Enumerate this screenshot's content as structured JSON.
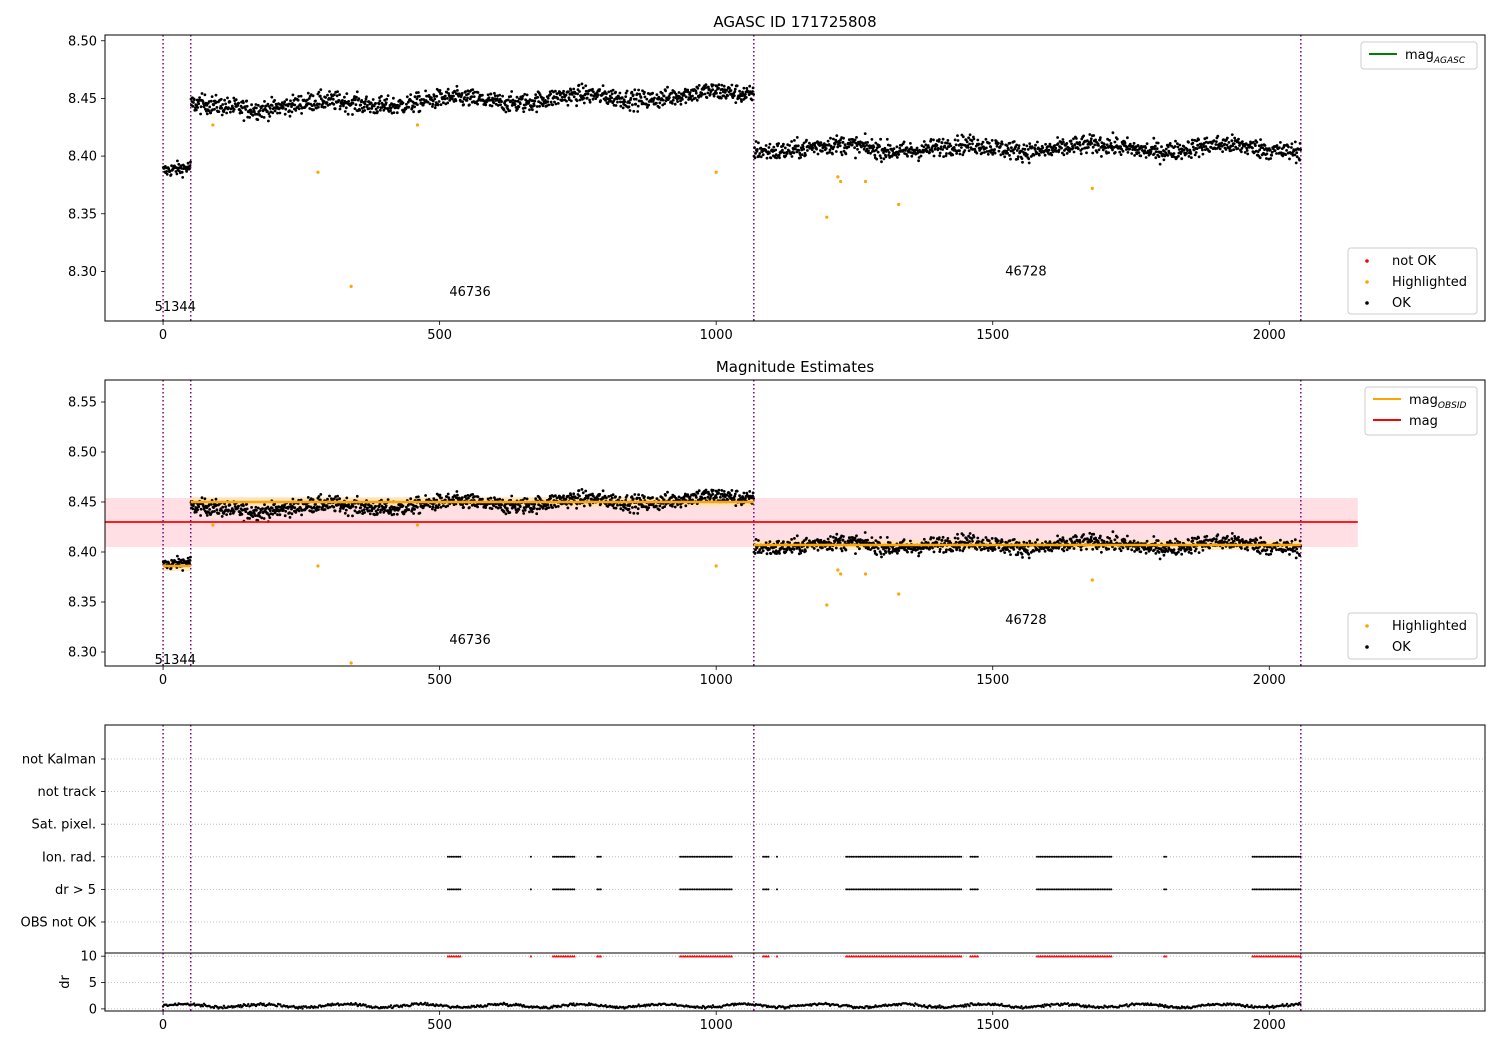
{
  "figure": {
    "title": "AGASC ID 171725808"
  },
  "chart_data": [
    {
      "type": "scatter",
      "title": "AGASC ID 171725808",
      "xlabel": "",
      "ylabel": "",
      "xlim": [
        -105,
        2390
      ],
      "ylim": [
        8.257,
        8.505
      ],
      "xticks": [
        0,
        500,
        1000,
        1500,
        2000
      ],
      "yticks": [
        8.3,
        8.35,
        8.4,
        8.45,
        8.5
      ],
      "ytick_labels": [
        "8.30",
        "8.35",
        "8.40",
        "8.45",
        "8.50"
      ],
      "grid": false,
      "legends": [
        {
          "placement": "top-right",
          "entries": [
            {
              "label": "mag",
              "sub": "AGASC",
              "color": "#008000",
              "kind": "line"
            }
          ]
        },
        {
          "placement": "lower-right",
          "entries": [
            {
              "label": "not OK",
              "color": "#ff0000",
              "kind": "marker"
            },
            {
              "label": "Highlighted",
              "color": "#ffa500",
              "kind": "marker"
            },
            {
              "label": "OK",
              "color": "#000000",
              "kind": "marker"
            }
          ]
        }
      ],
      "observations": [
        {
          "obsid": "51344",
          "start": 0,
          "end": 50,
          "mean": 8.387,
          "spread": 0.006
        },
        {
          "obsid": "46736",
          "start": 50,
          "end": 1068,
          "mean": 8.448,
          "trend": 0.012,
          "spread": 0.008
        },
        {
          "obsid": "46728",
          "start": 1068,
          "end": 2057,
          "mean": 8.407,
          "spread": 0.008
        }
      ],
      "obs_labels": [
        {
          "text": "51344",
          "x": 22,
          "y": 8.27
        },
        {
          "text": "46736",
          "x": 555,
          "y": 8.283
        },
        {
          "text": "46728",
          "x": 1560,
          "y": 8.301
        }
      ],
      "boundaries": [
        0,
        50,
        1068,
        2057
      ],
      "highlighted": [
        [
          90,
          8.427
        ],
        [
          280,
          8.386
        ],
        [
          340,
          8.287
        ],
        [
          460,
          8.427
        ],
        [
          1000,
          8.386
        ],
        [
          1200,
          8.347
        ],
        [
          1220,
          8.382
        ],
        [
          1225,
          8.378
        ],
        [
          1270,
          8.378
        ],
        [
          1330,
          8.358
        ],
        [
          1680,
          8.372
        ]
      ]
    },
    {
      "type": "scatter",
      "title": "Magnitude Estimates",
      "xlabel": "",
      "ylabel": "",
      "xlim": [
        -105,
        2390
      ],
      "ylim": [
        8.286,
        8.572
      ],
      "xticks": [
        0,
        500,
        1000,
        1500,
        2000
      ],
      "yticks": [
        8.3,
        8.35,
        8.4,
        8.45,
        8.5,
        8.55
      ],
      "ytick_labels": [
        "8.30",
        "8.35",
        "8.40",
        "8.45",
        "8.50",
        "8.55"
      ],
      "grid": false,
      "mag": {
        "value": 8.43,
        "band": [
          8.405,
          8.454
        ],
        "x_range": [
          -105,
          2160
        ],
        "color": "#ff0000",
        "band_color": "#ffdfe3"
      },
      "mag_obsid": [
        {
          "start": 0,
          "end": 50,
          "value": 8.386
        },
        {
          "start": 50,
          "end": 1068,
          "value": 8.45
        },
        {
          "start": 1068,
          "end": 2057,
          "value": 8.407
        }
      ],
      "legends": [
        {
          "placement": "top-right",
          "entries": [
            {
              "label": "mag",
              "sub": "OBSID",
              "color": "#ffa500",
              "kind": "line"
            },
            {
              "label": "mag",
              "sub": "",
              "color": "#ff0000",
              "kind": "line"
            }
          ]
        },
        {
          "placement": "lower-right",
          "entries": [
            {
              "label": "Highlighted",
              "color": "#ffa500",
              "kind": "marker"
            },
            {
              "label": "OK",
              "color": "#000000",
              "kind": "marker"
            }
          ]
        }
      ],
      "obs_labels": [
        {
          "text": "51344",
          "x": 22,
          "y": 8.293
        },
        {
          "text": "46736",
          "x": 555,
          "y": 8.313
        },
        {
          "text": "46728",
          "x": 1560,
          "y": 8.333
        }
      ],
      "boundaries": [
        0,
        50,
        1068,
        2057
      ],
      "highlighted": [
        [
          90,
          8.427
        ],
        [
          280,
          8.386
        ],
        [
          340,
          8.289
        ],
        [
          460,
          8.427
        ],
        [
          1000,
          8.386
        ],
        [
          1200,
          8.347
        ],
        [
          1220,
          8.382
        ],
        [
          1225,
          8.378
        ],
        [
          1270,
          8.378
        ],
        [
          1330,
          8.358
        ],
        [
          1680,
          8.372
        ]
      ]
    },
    {
      "type": "scatter",
      "title": "",
      "xlabel": "",
      "ylabel": "",
      "xlim": [
        -105,
        2390
      ],
      "categories": [
        "not Kalman",
        "not track",
        "Sat. pixel.",
        "Ion. rad.",
        "dr > 5",
        "OBS not OK"
      ],
      "grid": true,
      "flag_ranges": {
        "Ion. rad.": [
          [
            515,
            540
          ],
          [
            665,
            668
          ],
          [
            705,
            745
          ],
          [
            785,
            792
          ],
          [
            935,
            1030
          ],
          [
            1085,
            1095
          ],
          [
            1110,
            1113
          ],
          [
            1235,
            1445
          ],
          [
            1460,
            1475
          ],
          [
            1580,
            1715
          ],
          [
            1810,
            1815
          ],
          [
            1970,
            2057
          ]
        ],
        "dr > 5": [
          [
            515,
            540
          ],
          [
            665,
            668
          ],
          [
            705,
            745
          ],
          [
            785,
            792
          ],
          [
            935,
            1030
          ],
          [
            1085,
            1095
          ],
          [
            1110,
            1113
          ],
          [
            1235,
            1445
          ],
          [
            1460,
            1475
          ],
          [
            1580,
            1715
          ],
          [
            1810,
            1815
          ],
          [
            1970,
            2057
          ]
        ]
      },
      "boundaries": [
        0,
        50,
        1068,
        2057
      ]
    },
    {
      "type": "line",
      "title": "",
      "xlabel": "",
      "ylabel": "dr",
      "xlim": [
        -105,
        2390
      ],
      "ylim": [
        -0.4,
        10.6
      ],
      "xticks": [
        0,
        500,
        1000,
        1500,
        2000
      ],
      "yticks": [
        0,
        5,
        10
      ],
      "ytick_labels": [
        "0",
        "5",
        "10"
      ],
      "grid": true,
      "dr_level": 0.6,
      "dr_spread": 0.25,
      "clip_value": 10,
      "boundaries": [
        0,
        50,
        1068,
        2057
      ]
    }
  ]
}
